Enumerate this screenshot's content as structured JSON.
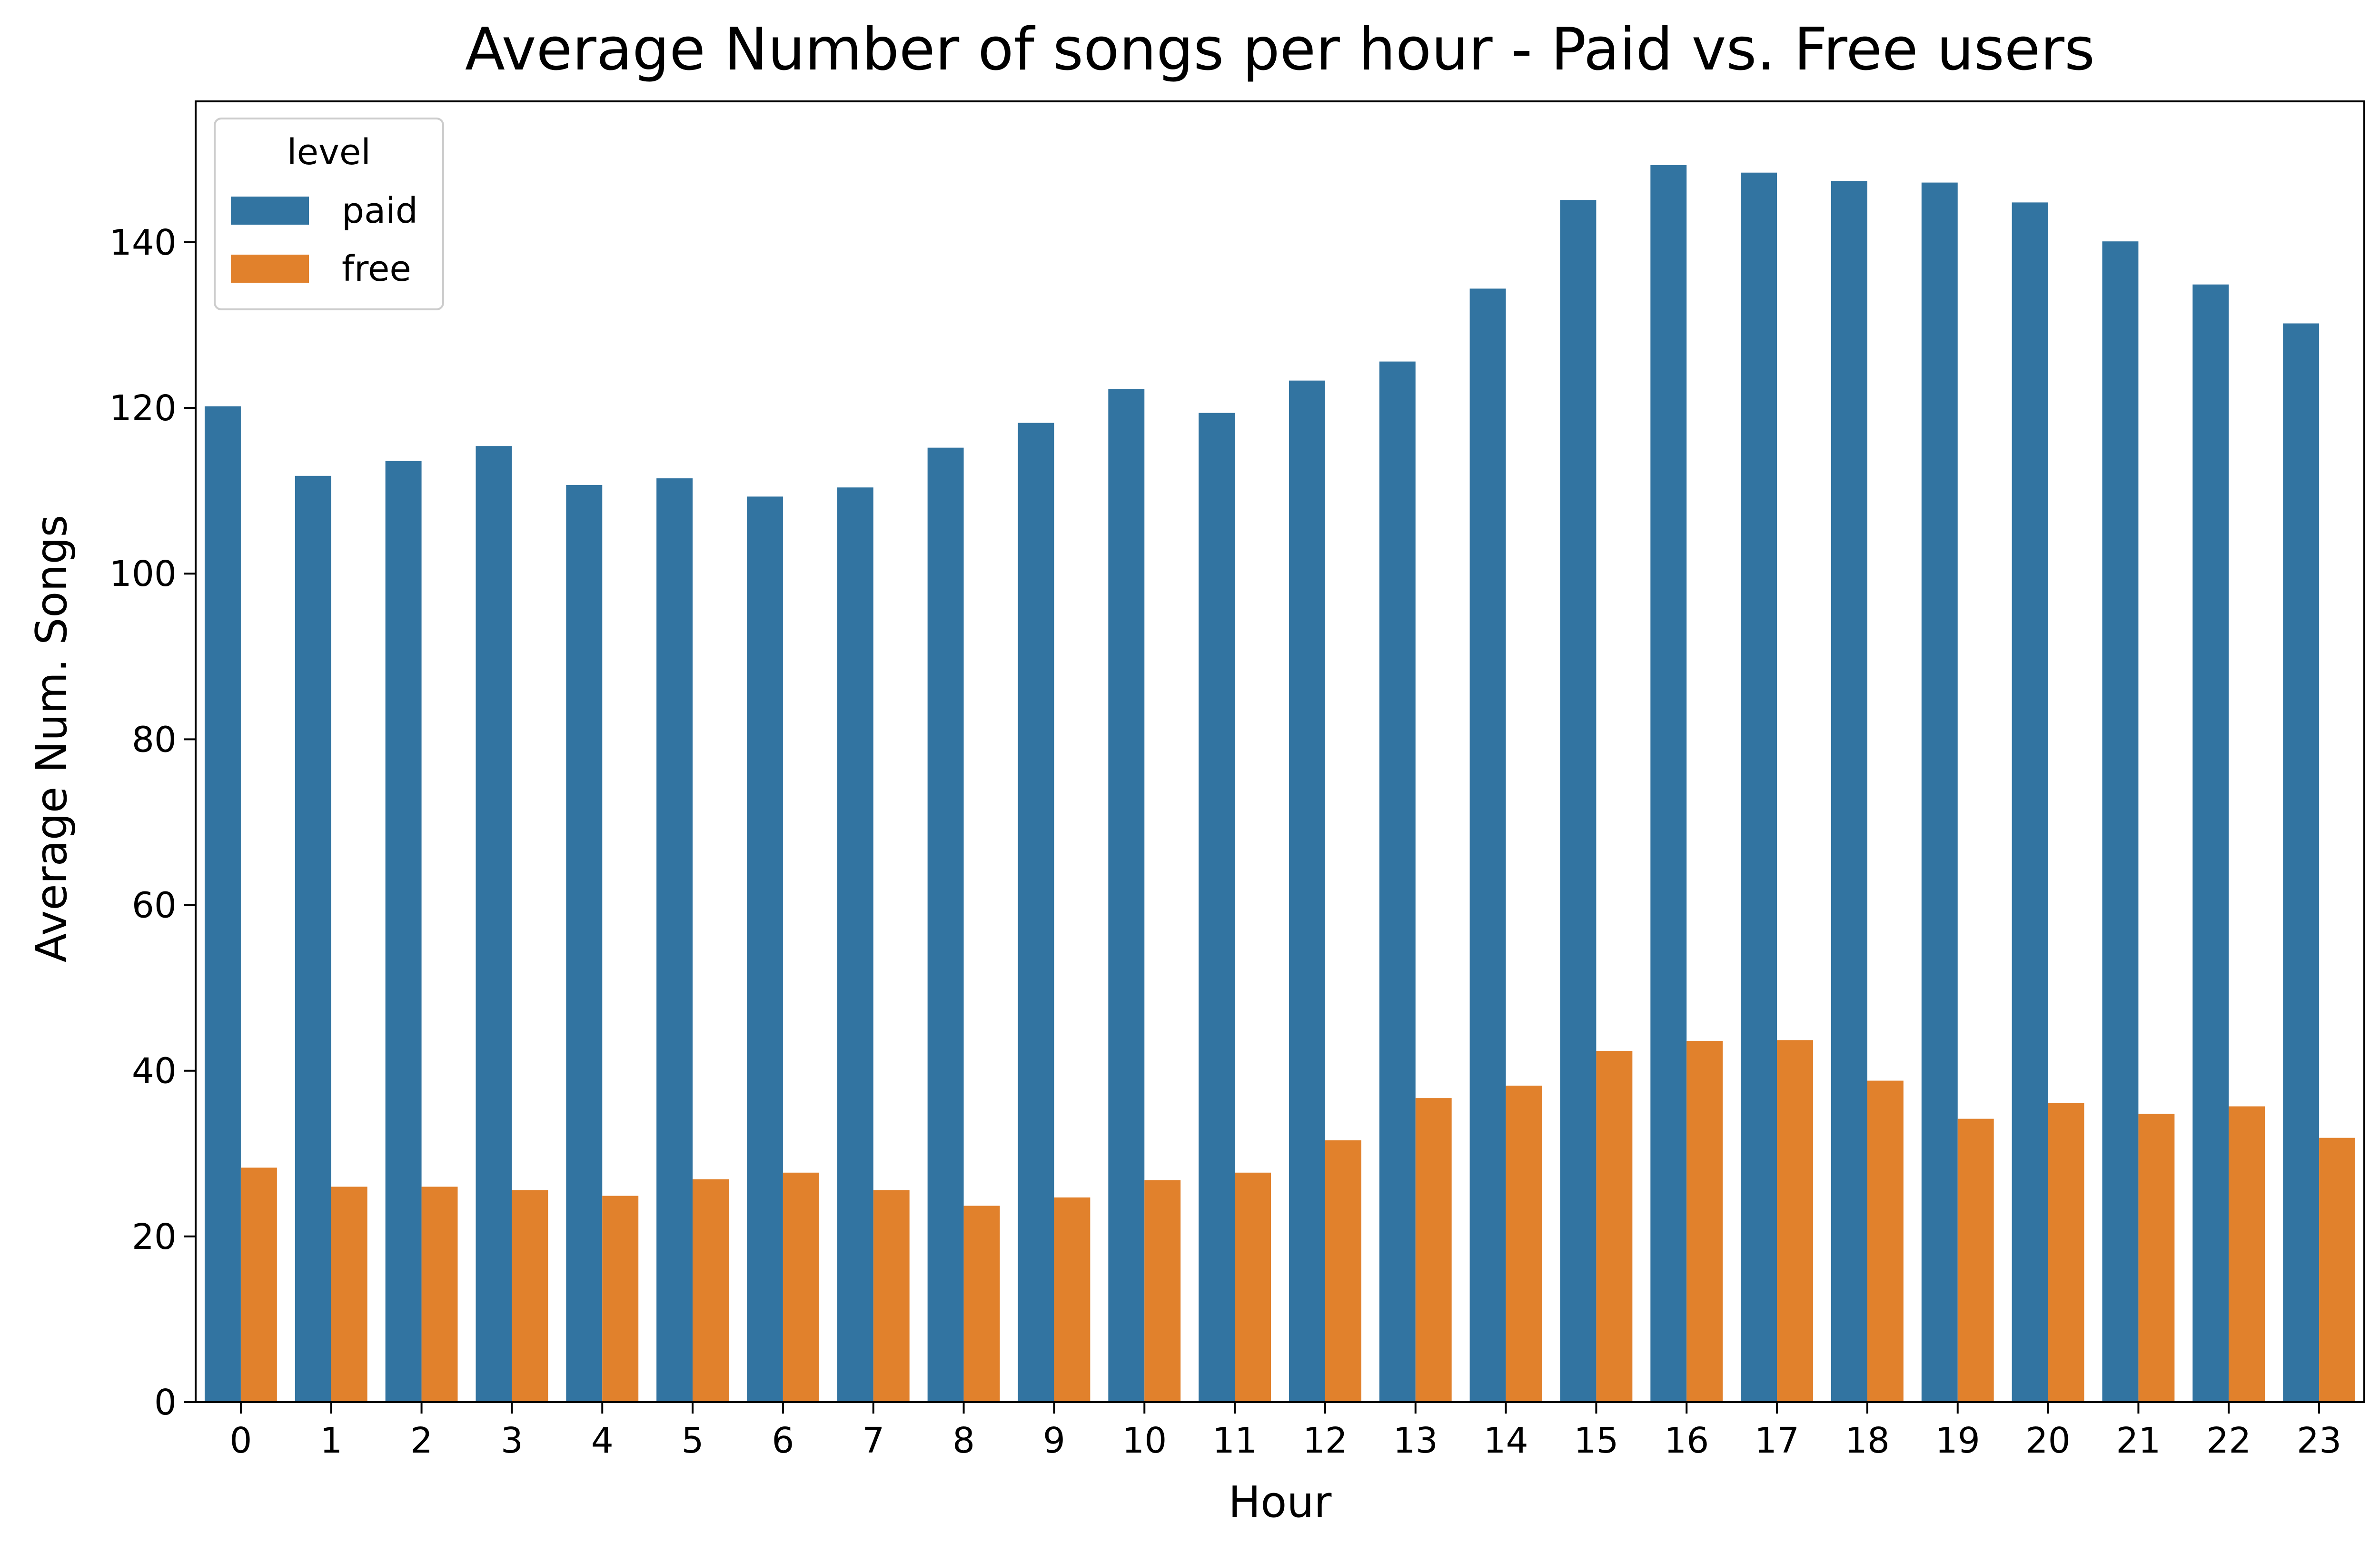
{
  "chart_data": {
    "type": "bar",
    "title": "Average Number of songs per hour - Paid vs. Free users",
    "xlabel": "Hour",
    "ylabel": "Average Num. Songs",
    "categories": [
      "0",
      "1",
      "2",
      "3",
      "4",
      "5",
      "6",
      "7",
      "8",
      "9",
      "10",
      "11",
      "12",
      "13",
      "14",
      "15",
      "16",
      "17",
      "18",
      "19",
      "20",
      "21",
      "22",
      "23"
    ],
    "ylim": [
      0,
      157
    ],
    "yticks": [
      0,
      20,
      40,
      60,
      80,
      100,
      120,
      140
    ],
    "grid": false,
    "legend": {
      "title": "level",
      "placement": "top-left"
    },
    "series": [
      {
        "name": "paid",
        "color": "#3274a1",
        "values": [
          120.2,
          111.8,
          113.6,
          115.4,
          110.7,
          111.5,
          109.3,
          110.4,
          115.2,
          118.2,
          122.3,
          119.4,
          123.3,
          125.6,
          134.4,
          145.1,
          149.3,
          148.4,
          147.4,
          147.2,
          144.8,
          140.1,
          134.9,
          130.2
        ]
      },
      {
        "name": "free",
        "color": "#e1812c",
        "values": [
          28.3,
          26.0,
          26.0,
          25.6,
          24.9,
          26.9,
          27.7,
          25.6,
          23.7,
          24.7,
          26.8,
          27.7,
          31.6,
          36.7,
          38.2,
          42.4,
          43.6,
          43.7,
          38.8,
          34.2,
          36.1,
          34.8,
          35.7,
          31.9
        ]
      }
    ]
  }
}
